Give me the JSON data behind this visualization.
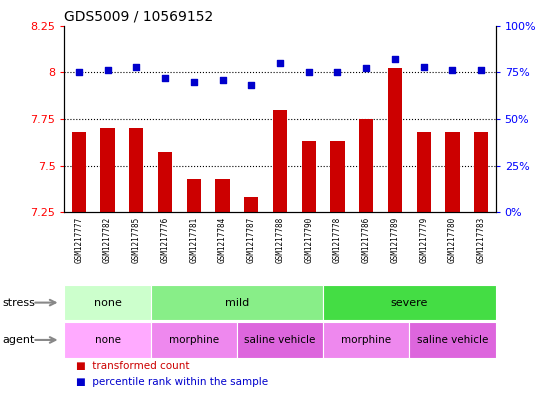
{
  "title": "GDS5009 / 10569152",
  "samples": [
    "GSM1217777",
    "GSM1217782",
    "GSM1217785",
    "GSM1217776",
    "GSM1217781",
    "GSM1217784",
    "GSM1217787",
    "GSM1217788",
    "GSM1217790",
    "GSM1217778",
    "GSM1217786",
    "GSM1217789",
    "GSM1217779",
    "GSM1217780",
    "GSM1217783"
  ],
  "transformed_count": [
    7.68,
    7.7,
    7.7,
    7.57,
    7.43,
    7.43,
    7.33,
    7.8,
    7.63,
    7.63,
    7.75,
    8.02,
    7.68,
    7.68,
    7.68
  ],
  "percentile_rank": [
    75,
    76,
    78,
    72,
    70,
    71,
    68,
    80,
    75,
    75,
    77,
    82,
    78,
    76,
    76
  ],
  "ylim_left": [
    7.25,
    8.25
  ],
  "ylim_right": [
    0,
    100
  ],
  "yticks_left": [
    7.25,
    7.5,
    7.75,
    8.0,
    8.25
  ],
  "yticks_right": [
    0,
    25,
    50,
    75,
    100
  ],
  "ytick_labels_left": [
    "7.25",
    "7.5",
    "7.75",
    "8",
    "8.25"
  ],
  "ytick_labels_right": [
    "0%",
    "25%",
    "50%",
    "75%",
    "100%"
  ],
  "hlines": [
    7.5,
    7.75,
    8.0
  ],
  "bar_color": "#cc0000",
  "dot_color": "#0000cc",
  "stress_groups": [
    {
      "text": "none",
      "start": 0,
      "end": 3,
      "color": "#ccffcc"
    },
    {
      "text": "mild",
      "start": 3,
      "end": 9,
      "color": "#88ee88"
    },
    {
      "text": "severe",
      "start": 9,
      "end": 15,
      "color": "#44dd44"
    }
  ],
  "agent_groups": [
    {
      "text": "none",
      "start": 0,
      "end": 3,
      "color": "#ffaaff"
    },
    {
      "text": "morphine",
      "start": 3,
      "end": 6,
      "color": "#ee88ee"
    },
    {
      "text": "saline vehicle",
      "start": 6,
      "end": 9,
      "color": "#dd66dd"
    },
    {
      "text": "morphine",
      "start": 9,
      "end": 12,
      "color": "#ee88ee"
    },
    {
      "text": "saline vehicle",
      "start": 12,
      "end": 15,
      "color": "#dd66dd"
    }
  ],
  "tick_bg_color": "#cccccc",
  "plot_bg_color": "#ffffff"
}
